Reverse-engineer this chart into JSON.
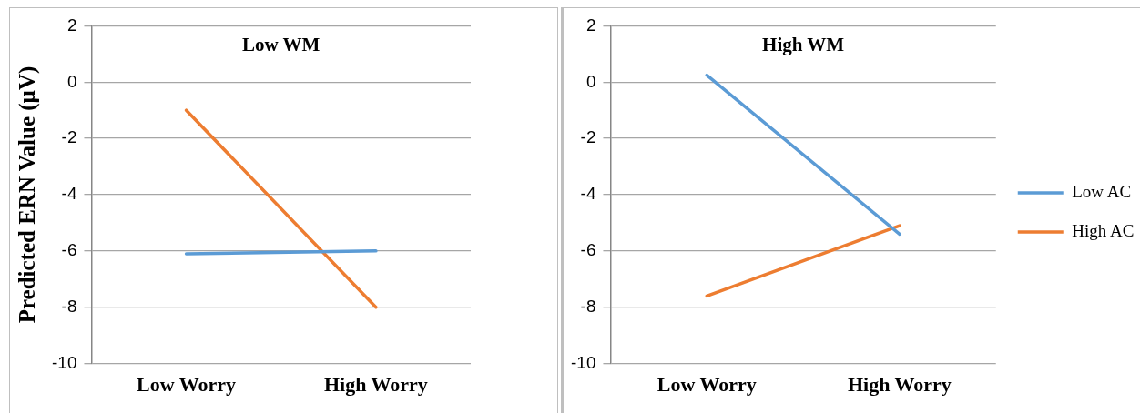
{
  "chart_data": [
    {
      "type": "line",
      "title": "Low WM",
      "ylabel": "Predicted ERN Value (µV)",
      "categories": [
        "Low Worry",
        "High Worry"
      ],
      "series": [
        {
          "color": "#5b9bd5",
          "values": [
            -6.1,
            -6.0
          ]
        },
        {
          "color": "#ed7d31",
          "values": [
            -1.0,
            -8.0
          ]
        }
      ],
      "ylim": [
        -10,
        2
      ],
      "yticks": [
        -10,
        -8,
        -6,
        -4,
        -2,
        0,
        2
      ],
      "grid": "y",
      "legend": false,
      "marker": "none",
      "line_style": "solid"
    },
    {
      "type": "line",
      "title": "High WM",
      "categories": [
        "Low Worry",
        "High Worry"
      ],
      "series": [
        {
          "name": "Low AC",
          "color": "#5b9bd5",
          "values": [
            0.25,
            -5.4
          ]
        },
        {
          "name": "High AC",
          "color": "#ed7d31",
          "values": [
            -7.6,
            -5.1
          ]
        }
      ],
      "ylim": [
        -10,
        2
      ],
      "yticks": [
        -10,
        -8,
        -6,
        -4,
        -2,
        0,
        2
      ],
      "grid": "y",
      "legend": "right",
      "marker": "none",
      "line_style": "solid"
    }
  ]
}
